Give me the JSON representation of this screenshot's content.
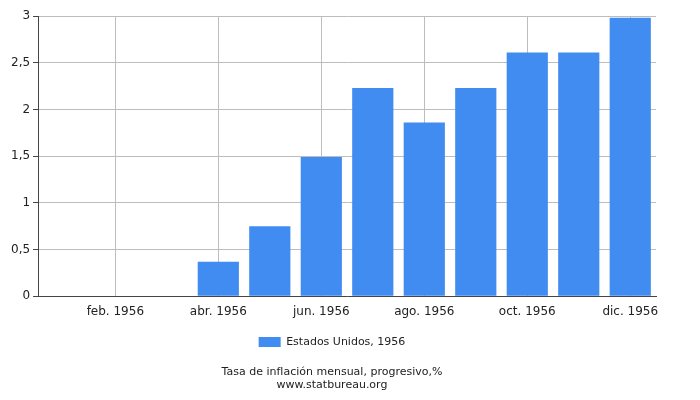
{
  "chart_data": {
    "type": "bar",
    "title": "Tasa de inflación mensual, progresivo,%",
    "subtitle": "www.statbureau.org",
    "categories": [
      null,
      "feb. 1956",
      null,
      "abr. 1956",
      null,
      "jun. 1956",
      null,
      "ago. 1956",
      null,
      "oct. 1956",
      null,
      "dic. 1956"
    ],
    "series": [
      {
        "name": "Estados Unidos, 1956",
        "color": "#418cf0",
        "values": [
          0,
          0,
          0,
          0.37,
          0.75,
          1.49,
          2.23,
          1.86,
          2.23,
          2.61,
          2.61,
          2.98
        ]
      }
    ],
    "ylim": [
      0,
      3
    ],
    "yticks": [
      0,
      {
        "value": 0.5,
        "label": "0,5"
      },
      1,
      {
        "value": 1.5,
        "label": "1,5"
      },
      2,
      {
        "value": 2.5,
        "label": "2,5"
      },
      3
    ],
    "grid": true,
    "legend": "bottom"
  }
}
